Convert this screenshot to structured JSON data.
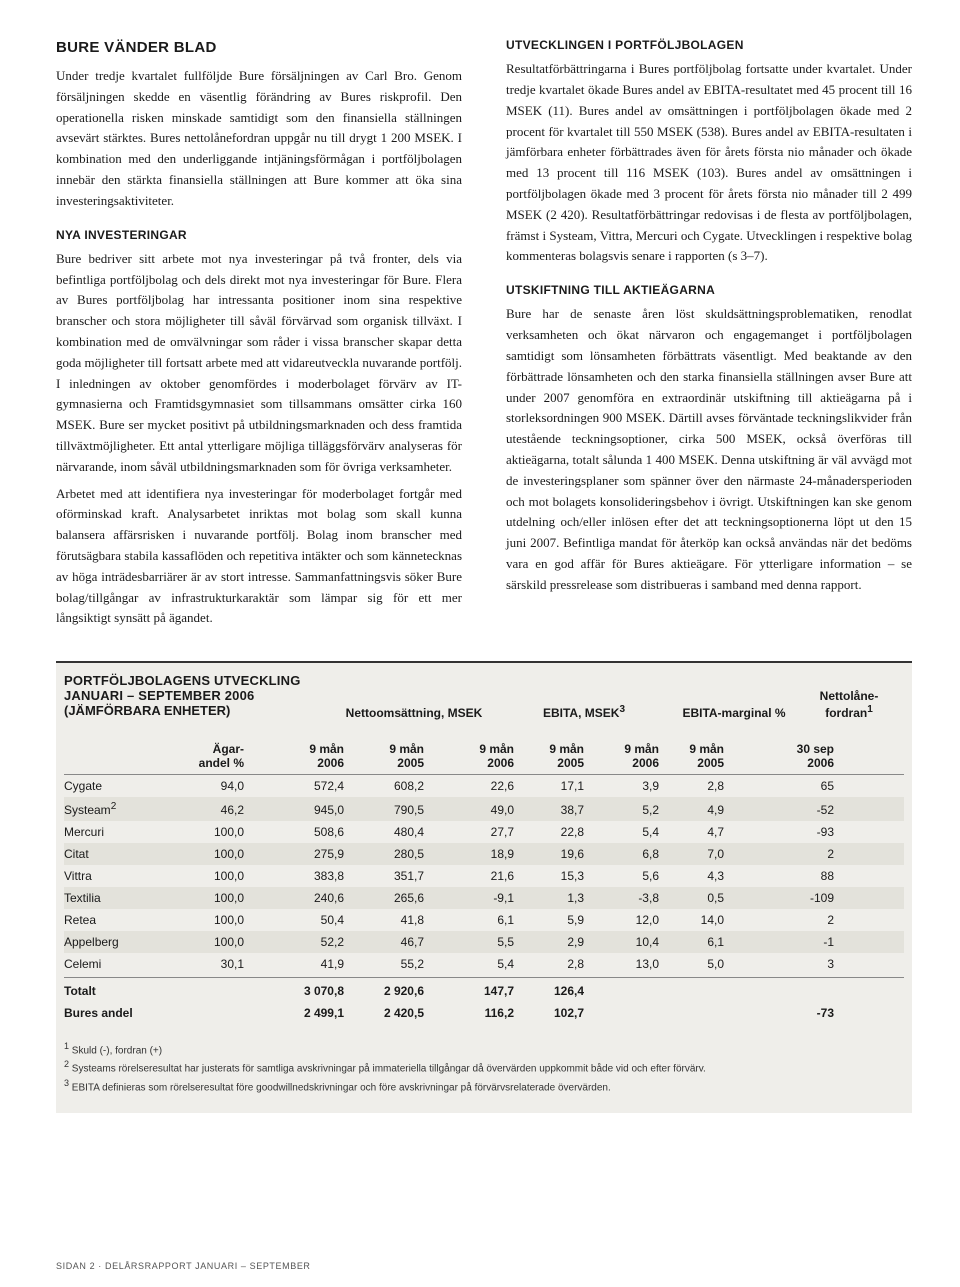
{
  "left": {
    "title": "BURE VÄNDER BLAD",
    "p1": "Under tredje kvartalet fullföljde Bure försäljningen av Carl Bro. Genom försäljningen skedde en väsentlig förändring av Bures riskprofil. Den operationella risken minskade samtidigt som den finansiella ställningen avsevärt stärktes. Bures nettolånefordran uppgår nu till drygt 1 200 MSEK. I kombination med den underliggande intjäningsförmågan i portföljbolagen innebär den stärkta finansiella ställningen att Bure kommer att öka sina investeringsaktiviteter.",
    "sub1": "NYA INVESTERINGAR",
    "p2": "Bure bedriver sitt arbete mot nya investeringar på två fronter, dels via befintliga portföljbolag och dels direkt mot nya investeringar för Bure. Flera av Bures portföljbolag har intressanta positioner inom sina respektive branscher och stora möjligheter till såväl förvärvad som organisk tillväxt. I kombination med de omvälvningar som råder i vissa branscher skapar detta goda möjligheter till fortsatt arbete med att vidareutveckla nuvarande portfölj. I inledningen av oktober genomfördes i moderbolaget förvärv av IT-gymnasierna och Framtidsgymnasiet som tillsammans omsätter cirka 160 MSEK. Bure ser mycket positivt på utbildningsmarknaden och dess framtida tillväxtmöjligheter. Ett antal ytterligare möjliga tilläggsförvärv analyseras för närvarande, inom såväl utbildningsmarknaden som för övriga verksamheter.",
    "p3": "Arbetet med att identifiera nya investeringar för moderbolaget fortgår med oförminskad kraft. Analysarbetet inriktas mot bolag som skall kunna balansera affärsrisken i nuvarande portfölj. Bolag inom branscher med förutsägbara stabila kassaflöden och repetitiva intäkter och som kännetecknas av höga inträdesbarriärer är av stort intresse. Sammanfattningsvis söker Bure bolag/tillgångar av infrastrukturkaraktär som lämpar sig för ett mer långsiktigt synsätt på ägandet."
  },
  "right": {
    "sub1": "UTVECKLINGEN I PORTFÖLJBOLAGEN",
    "p1": "Resultatförbättringarna i Bures portföljbolag fortsatte under kvartalet. Under tredje kvartalet ökade Bures andel av EBITA-resultatet med 45 procent till 16 MSEK (11). Bures andel av omsättningen i portföljbolagen ökade med 2 procent för kvartalet till 550 MSEK (538). Bures andel av EBITA-resultaten i jämförbara enheter förbättrades även för årets första nio månader och ökade med 13 procent till 116 MSEK (103). Bures andel av omsättningen i portföljbolagen ökade med 3 procent för årets första nio månader till 2 499 MSEK (2 420). Resultatförbättringar redovisas i de flesta av portföljbolagen, främst i Systeam, Vittra, Mercuri och Cygate. Utvecklingen i respektive bolag kommenteras bolagsvis senare i rapporten (s 3–7).",
    "sub2": "UTSKIFTNING TILL AKTIEÄGARNA",
    "p2": "Bure har de senaste åren löst skuldsättningsproblematiken, renodlat verksamheten och ökat närvaron och engagemanget i portföljbolagen samtidigt som lönsamheten förbättrats väsentligt. Med beaktande av den förbättrade lönsamheten och den starka finansiella ställningen avser Bure att under 2007 genomföra en extraordinär utskiftning till aktieägarna på i storleksordningen 900 MSEK. Därtill avses förväntade teckningslikvider från utestående teckningsoptioner, cirka 500 MSEK, också överföras till aktieägarna, totalt sålunda 1 400 MSEK. Denna utskiftning är väl avvägd mot de investeringsplaner som spänner över den närmaste 24-månadersperioden och mot bolagets konsolideringsbehov i övrigt. Utskiftningen kan ske genom utdelning och/eller inlösen efter det att teckningsoptionerna löpt ut den 15 juni 2007. Befintliga mandat för återköp kan också användas när det bedöms vara en god affär för Bures aktieägare. För ytterligare information – se särskild pressrelease som distribueras i samband med denna rapport."
  },
  "table": {
    "title": "PORTFÖLJBOLAGENS UTVECKLING JANUARI – SEPTEMBER 2006",
    "subtitle": "(JÄMFÖRBARA ENHETER)",
    "group_headers": {
      "netto": "Nettoomsättning, MSEK",
      "ebita": "EBITA, MSEK",
      "margin": "EBITA-marginal %",
      "net": "Nettolåne-\nfordran"
    },
    "sub_headers": {
      "own_top": "Ägar-",
      "own_bot": "andel %",
      "m9_06_top": "9 mån",
      "m9_06_bot": "2006",
      "m9_05_top": "9 mån",
      "m9_05_bot": "2005",
      "sep_top": "30 sep",
      "sep_bot": "2006"
    },
    "rows": [
      {
        "name": "Cygate",
        "own": "94,0",
        "n06": "572,4",
        "n05": "608,2",
        "e06": "22,6",
        "e05": "17,1",
        "m06": "3,9",
        "m05": "2,8",
        "net": "65"
      },
      {
        "name": "Systeam",
        "sup": "2",
        "own": "46,2",
        "n06": "945,0",
        "n05": "790,5",
        "e06": "49,0",
        "e05": "38,7",
        "m06": "5,2",
        "m05": "4,9",
        "net": "-52"
      },
      {
        "name": "Mercuri",
        "own": "100,0",
        "n06": "508,6",
        "n05": "480,4",
        "e06": "27,7",
        "e05": "22,8",
        "m06": "5,4",
        "m05": "4,7",
        "net": "-93"
      },
      {
        "name": "Citat",
        "own": "100,0",
        "n06": "275,9",
        "n05": "280,5",
        "e06": "18,9",
        "e05": "19,6",
        "m06": "6,8",
        "m05": "7,0",
        "net": "2"
      },
      {
        "name": "Vittra",
        "own": "100,0",
        "n06": "383,8",
        "n05": "351,7",
        "e06": "21,6",
        "e05": "15,3",
        "m06": "5,6",
        "m05": "4,3",
        "net": "88"
      },
      {
        "name": "Textilia",
        "own": "100,0",
        "n06": "240,6",
        "n05": "265,6",
        "e06": "-9,1",
        "e05": "1,3",
        "m06": "-3,8",
        "m05": "0,5",
        "net": "-109"
      },
      {
        "name": "Retea",
        "own": "100,0",
        "n06": "50,4",
        "n05": "41,8",
        "e06": "6,1",
        "e05": "5,9",
        "m06": "12,0",
        "m05": "14,0",
        "net": "2"
      },
      {
        "name": "Appelberg",
        "own": "100,0",
        "n06": "52,2",
        "n05": "46,7",
        "e06": "5,5",
        "e05": "2,9",
        "m06": "10,4",
        "m05": "6,1",
        "net": "-1"
      },
      {
        "name": "Celemi",
        "own": "30,1",
        "n06": "41,9",
        "n05": "55,2",
        "e06": "5,4",
        "e05": "2,8",
        "m06": "13,0",
        "m05": "5,0",
        "net": "3"
      }
    ],
    "total": {
      "name": "Totalt",
      "n06": "3 070,8",
      "n05": "2 920,6",
      "e06": "147,7",
      "e05": "126,4"
    },
    "bures": {
      "name": "Bures andel",
      "n06": "2 499,1",
      "n05": "2 420,5",
      "e06": "116,2",
      "e05": "102,7",
      "net": "-73"
    },
    "footnotes": {
      "f1": "Skuld (-), fordran (+)",
      "f2": "Systeams rörelseresultat har justerats för samtliga avskrivningar på immateriella tillgångar då övervärden uppkommit både vid och efter förvärv.",
      "f3": "EBITA definieras som rörelseresultat före goodwillnedskrivningar och före avskrivningar på förvärvsrelaterade övervärden."
    }
  },
  "footer": "SIDAN 2 · DELÅRSRAPPORT JANUARI – SEPTEMBER"
}
